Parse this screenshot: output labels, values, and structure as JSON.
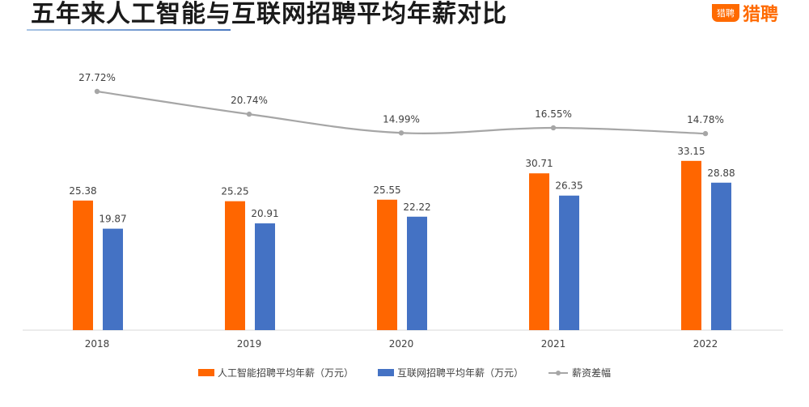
{
  "header": {
    "title": "五年来人工智能与互联网招聘平均年薪对比",
    "logo_badge": "猎聘",
    "logo_text": "猎聘"
  },
  "chart_data": {
    "type": "bar",
    "title": "五年来人工智能与互联网招聘平均年薪对比",
    "categories": [
      "2018",
      "2019",
      "2020",
      "2021",
      "2022"
    ],
    "series": [
      {
        "name": "人工智能招聘平均年薪（万元）",
        "type": "bar",
        "color": "#ff6600",
        "values": [
          25.38,
          25.25,
          25.55,
          30.71,
          33.15
        ],
        "labels": [
          "25.38",
          "25.25",
          "25.55",
          "30.71",
          "33.15"
        ]
      },
      {
        "name": "互联网招聘平均年薪（万元）",
        "type": "bar",
        "color": "#4472c4",
        "values": [
          19.87,
          20.91,
          22.22,
          26.35,
          28.88
        ],
        "labels": [
          "19.87",
          "20.91",
          "22.22",
          "26.35",
          "28.88"
        ]
      },
      {
        "name": "薪资差幅",
        "type": "line",
        "color": "#a6a6a6",
        "values": [
          27.72,
          20.74,
          14.99,
          16.55,
          14.78
        ],
        "labels": [
          "27.72%",
          "20.74%",
          "14.99%",
          "16.55%",
          "14.78%"
        ]
      }
    ],
    "grid": false,
    "legend_position": "bottom"
  }
}
